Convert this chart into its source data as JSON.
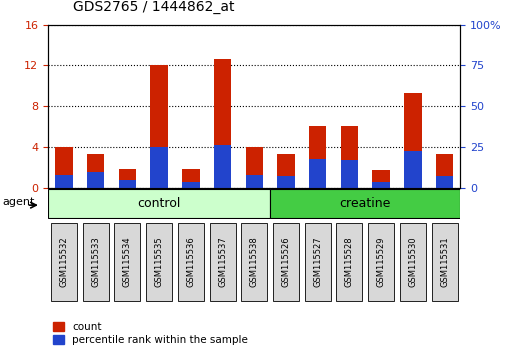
{
  "title": "GDS2765 / 1444862_at",
  "categories": [
    "GSM115532",
    "GSM115533",
    "GSM115534",
    "GSM115535",
    "GSM115536",
    "GSM115537",
    "GSM115538",
    "GSM115526",
    "GSM115527",
    "GSM115528",
    "GSM115529",
    "GSM115530",
    "GSM115531"
  ],
  "count_values": [
    4.0,
    3.3,
    1.8,
    12.0,
    1.8,
    12.6,
    4.0,
    3.3,
    6.1,
    6.1,
    1.7,
    9.3,
    3.3
  ],
  "percentile_values": [
    1.2,
    1.5,
    0.7,
    4.0,
    0.6,
    4.2,
    1.2,
    1.1,
    2.8,
    2.7,
    0.6,
    3.6,
    1.1
  ],
  "control_indices": [
    0,
    1,
    2,
    3,
    4,
    5,
    6
  ],
  "creatine_indices": [
    7,
    8,
    9,
    10,
    11,
    12
  ],
  "control_label": "control",
  "creatine_label": "creatine",
  "control_color_light": "#ccffcc",
  "creatine_color": "#44cc44",
  "bar_width": 0.55,
  "ylim_left": [
    0,
    16
  ],
  "ylim_right": [
    0,
    100
  ],
  "yticks_left": [
    0,
    4,
    8,
    12,
    16
  ],
  "yticks_right": [
    0,
    25,
    50,
    75,
    100
  ],
  "count_color": "#cc2200",
  "percentile_color": "#2244cc",
  "agent_label": "agent",
  "legend_count": "count",
  "legend_percentile": "percentile rank within the sample",
  "left_tick_color": "#cc2200",
  "right_tick_color": "#2244cc",
  "background_color": "#ffffff"
}
